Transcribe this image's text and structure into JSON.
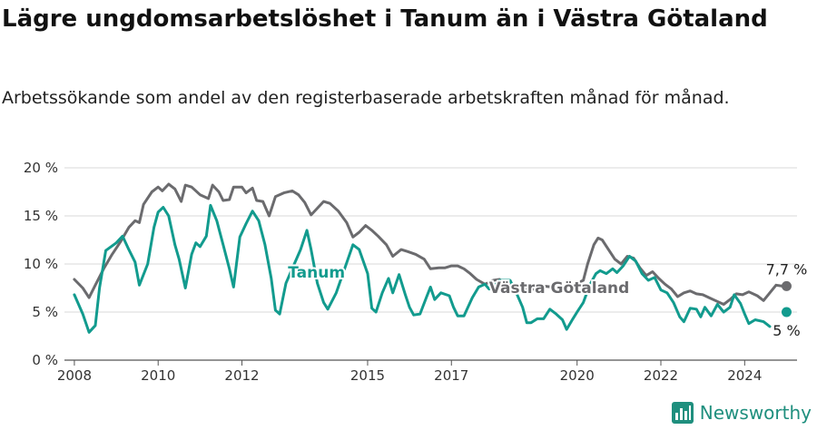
{
  "title": "Lägre ungdomsarbetslöshet i Tanum än i Västra Götaland",
  "subtitle": "Arbetssökande som andel av den registerbaserade arbetskraften månad för månad.",
  "brand": "Newsworthy",
  "colors": {
    "tanum": "#129b8e",
    "vg": "#6b6b6e",
    "grid": "#d9d9d9",
    "brand": "#1f8f7e"
  },
  "chart_data": {
    "type": "line",
    "ylim": [
      0,
      20
    ],
    "y_ticks": [
      "0 %",
      "5 %",
      "10 %",
      "15 %",
      "20 %"
    ],
    "x_ticks": [
      "2008",
      "2010",
      "2012",
      "2015",
      "2017",
      "2020",
      "2022",
      "2024"
    ],
    "series": [
      {
        "name": "Tanum",
        "end_label": "5 %",
        "points": [
          [
            2008.0,
            6.8
          ],
          [
            2008.2,
            4.8
          ],
          [
            2008.35,
            2.9
          ],
          [
            2008.5,
            3.6
          ],
          [
            2008.6,
            7.5
          ],
          [
            2008.75,
            11.4
          ],
          [
            2009.0,
            12.2
          ],
          [
            2009.15,
            12.9
          ],
          [
            2009.3,
            11.5
          ],
          [
            2009.45,
            10.2
          ],
          [
            2009.55,
            7.8
          ],
          [
            2009.75,
            10.0
          ],
          [
            2009.9,
            13.8
          ],
          [
            2010.0,
            15.4
          ],
          [
            2010.12,
            15.9
          ],
          [
            2010.25,
            15.0
          ],
          [
            2010.4,
            12.0
          ],
          [
            2010.5,
            10.5
          ],
          [
            2010.65,
            7.5
          ],
          [
            2010.8,
            11.0
          ],
          [
            2010.9,
            12.2
          ],
          [
            2011.0,
            11.8
          ],
          [
            2011.15,
            12.9
          ],
          [
            2011.25,
            16.1
          ],
          [
            2011.4,
            14.5
          ],
          [
            2011.55,
            12.0
          ],
          [
            2011.7,
            9.5
          ],
          [
            2011.8,
            7.6
          ],
          [
            2011.95,
            12.8
          ],
          [
            2012.1,
            14.2
          ],
          [
            2012.25,
            15.5
          ],
          [
            2012.4,
            14.5
          ],
          [
            2012.55,
            12.0
          ],
          [
            2012.7,
            8.5
          ],
          [
            2012.8,
            5.2
          ],
          [
            2012.9,
            4.8
          ],
          [
            2013.05,
            8.0
          ],
          [
            2013.25,
            10.0
          ],
          [
            2013.4,
            11.5
          ],
          [
            2013.55,
            13.5
          ],
          [
            2013.65,
            11.5
          ],
          [
            2013.8,
            8.0
          ],
          [
            2013.95,
            6.0
          ],
          [
            2014.05,
            5.3
          ],
          [
            2014.25,
            7.0
          ],
          [
            2014.45,
            9.5
          ],
          [
            2014.65,
            12.0
          ],
          [
            2014.8,
            11.5
          ],
          [
            2015.0,
            9.0
          ],
          [
            2015.1,
            5.4
          ],
          [
            2015.2,
            5.0
          ],
          [
            2015.35,
            7.0
          ],
          [
            2015.5,
            8.5
          ],
          [
            2015.6,
            7.0
          ],
          [
            2015.75,
            8.9
          ],
          [
            2015.9,
            6.8
          ],
          [
            2016.0,
            5.5
          ],
          [
            2016.1,
            4.7
          ],
          [
            2016.25,
            4.8
          ],
          [
            2016.4,
            6.5
          ],
          [
            2016.5,
            7.6
          ],
          [
            2016.6,
            6.3
          ],
          [
            2016.75,
            7.0
          ],
          [
            2016.95,
            6.7
          ],
          [
            2017.05,
            5.5
          ],
          [
            2017.15,
            4.6
          ],
          [
            2017.3,
            4.6
          ],
          [
            2017.5,
            6.5
          ],
          [
            2017.65,
            7.6
          ],
          [
            2017.8,
            7.9
          ],
          [
            2017.9,
            7.4
          ],
          [
            2018.0,
            7.6
          ],
          [
            2018.15,
            8.3
          ],
          [
            2018.4,
            8.3
          ],
          [
            2018.55,
            7.0
          ],
          [
            2018.7,
            5.5
          ],
          [
            2018.8,
            3.9
          ],
          [
            2018.9,
            3.9
          ],
          [
            2019.05,
            4.3
          ],
          [
            2019.2,
            4.3
          ],
          [
            2019.35,
            5.3
          ],
          [
            2019.5,
            4.8
          ],
          [
            2019.65,
            4.2
          ],
          [
            2019.75,
            3.2
          ],
          [
            2019.9,
            4.3
          ],
          [
            2020.0,
            5.0
          ],
          [
            2020.15,
            6.0
          ],
          [
            2020.3,
            7.8
          ],
          [
            2020.45,
            9.0
          ],
          [
            2020.55,
            9.3
          ],
          [
            2020.7,
            9.0
          ],
          [
            2020.85,
            9.5
          ],
          [
            2020.95,
            9.1
          ],
          [
            2021.1,
            9.8
          ],
          [
            2021.25,
            10.8
          ],
          [
            2021.4,
            10.3
          ],
          [
            2021.55,
            9.0
          ],
          [
            2021.7,
            8.3
          ],
          [
            2021.85,
            8.6
          ],
          [
            2022.0,
            7.3
          ],
          [
            2022.15,
            7.0
          ],
          [
            2022.3,
            6.0
          ],
          [
            2022.45,
            4.5
          ],
          [
            2022.55,
            4.0
          ],
          [
            2022.7,
            5.4
          ],
          [
            2022.85,
            5.3
          ],
          [
            2022.95,
            4.5
          ],
          [
            2023.05,
            5.5
          ],
          [
            2023.2,
            4.6
          ],
          [
            2023.35,
            5.8
          ],
          [
            2023.5,
            5.0
          ],
          [
            2023.65,
            5.5
          ],
          [
            2023.75,
            6.8
          ],
          [
            2023.9,
            5.9
          ],
          [
            2024.0,
            4.8
          ],
          [
            2024.1,
            3.8
          ],
          [
            2024.25,
            4.2
          ],
          [
            2024.45,
            4.0
          ],
          [
            2024.6,
            3.5
          ]
        ],
        "end_point": [
          2025.0,
          5.0
        ]
      },
      {
        "name": "Västra Götaland",
        "end_label": "7,7 %",
        "points": [
          [
            2008.0,
            8.4
          ],
          [
            2008.2,
            7.5
          ],
          [
            2008.35,
            6.5
          ],
          [
            2008.5,
            7.8
          ],
          [
            2008.7,
            9.5
          ],
          [
            2008.9,
            11.0
          ],
          [
            2009.1,
            12.3
          ],
          [
            2009.3,
            13.8
          ],
          [
            2009.45,
            14.5
          ],
          [
            2009.55,
            14.3
          ],
          [
            2009.65,
            16.2
          ],
          [
            2009.85,
            17.5
          ],
          [
            2010.0,
            18.0
          ],
          [
            2010.1,
            17.6
          ],
          [
            2010.25,
            18.3
          ],
          [
            2010.4,
            17.8
          ],
          [
            2010.55,
            16.5
          ],
          [
            2010.65,
            18.2
          ],
          [
            2010.8,
            18.0
          ],
          [
            2011.0,
            17.2
          ],
          [
            2011.2,
            16.8
          ],
          [
            2011.3,
            18.2
          ],
          [
            2011.45,
            17.5
          ],
          [
            2011.55,
            16.6
          ],
          [
            2011.7,
            16.7
          ],
          [
            2011.8,
            18.0
          ],
          [
            2012.0,
            18.0
          ],
          [
            2012.1,
            17.4
          ],
          [
            2012.25,
            17.9
          ],
          [
            2012.35,
            16.6
          ],
          [
            2012.5,
            16.5
          ],
          [
            2012.65,
            15.0
          ],
          [
            2012.8,
            17.0
          ],
          [
            2013.0,
            17.4
          ],
          [
            2013.2,
            17.6
          ],
          [
            2013.35,
            17.2
          ],
          [
            2013.5,
            16.4
          ],
          [
            2013.65,
            15.1
          ],
          [
            2013.8,
            15.8
          ],
          [
            2013.95,
            16.5
          ],
          [
            2014.1,
            16.3
          ],
          [
            2014.3,
            15.5
          ],
          [
            2014.5,
            14.3
          ],
          [
            2014.65,
            12.8
          ],
          [
            2014.8,
            13.3
          ],
          [
            2014.95,
            14.0
          ],
          [
            2015.1,
            13.5
          ],
          [
            2015.25,
            12.9
          ],
          [
            2015.45,
            12.0
          ],
          [
            2015.6,
            10.8
          ],
          [
            2015.8,
            11.5
          ],
          [
            2015.95,
            11.3
          ],
          [
            2016.15,
            11.0
          ],
          [
            2016.35,
            10.5
          ],
          [
            2016.5,
            9.5
          ],
          [
            2016.7,
            9.6
          ],
          [
            2016.85,
            9.6
          ],
          [
            2017.0,
            9.8
          ],
          [
            2017.15,
            9.8
          ],
          [
            2017.3,
            9.5
          ],
          [
            2017.45,
            9.0
          ],
          [
            2017.6,
            8.4
          ],
          [
            2017.8,
            7.9
          ],
          [
            2018.0,
            8.3
          ],
          [
            2018.15,
            8.4
          ],
          [
            2018.3,
            7.6
          ],
          [
            2018.45,
            7.9
          ],
          [
            2018.6,
            7.5
          ],
          [
            2018.8,
            7.3
          ],
          [
            2019.0,
            7.4
          ],
          [
            2019.2,
            7.7
          ],
          [
            2019.4,
            7.6
          ],
          [
            2019.6,
            7.6
          ],
          [
            2019.8,
            7.8
          ],
          [
            2020.0,
            8.0
          ],
          [
            2020.15,
            8.3
          ],
          [
            2020.25,
            10.0
          ],
          [
            2020.4,
            12.0
          ],
          [
            2020.5,
            12.7
          ],
          [
            2020.6,
            12.5
          ],
          [
            2020.75,
            11.5
          ],
          [
            2020.9,
            10.5
          ],
          [
            2021.05,
            10.0
          ],
          [
            2021.2,
            10.8
          ],
          [
            2021.35,
            10.6
          ],
          [
            2021.5,
            9.6
          ],
          [
            2021.65,
            8.8
          ],
          [
            2021.8,
            9.2
          ],
          [
            2021.95,
            8.5
          ],
          [
            2022.1,
            7.9
          ],
          [
            2022.25,
            7.4
          ],
          [
            2022.4,
            6.6
          ],
          [
            2022.55,
            7.0
          ],
          [
            2022.7,
            7.2
          ],
          [
            2022.85,
            6.9
          ],
          [
            2023.0,
            6.8
          ],
          [
            2023.15,
            6.5
          ],
          [
            2023.3,
            6.2
          ],
          [
            2023.5,
            5.8
          ],
          [
            2023.65,
            6.3
          ],
          [
            2023.8,
            6.9
          ],
          [
            2023.95,
            6.8
          ],
          [
            2024.1,
            7.1
          ],
          [
            2024.3,
            6.7
          ],
          [
            2024.45,
            6.2
          ],
          [
            2024.6,
            7.0
          ],
          [
            2024.75,
            7.8
          ],
          [
            2024.9,
            7.7
          ]
        ],
        "end_point": [
          2025.0,
          7.7
        ]
      }
    ]
  }
}
